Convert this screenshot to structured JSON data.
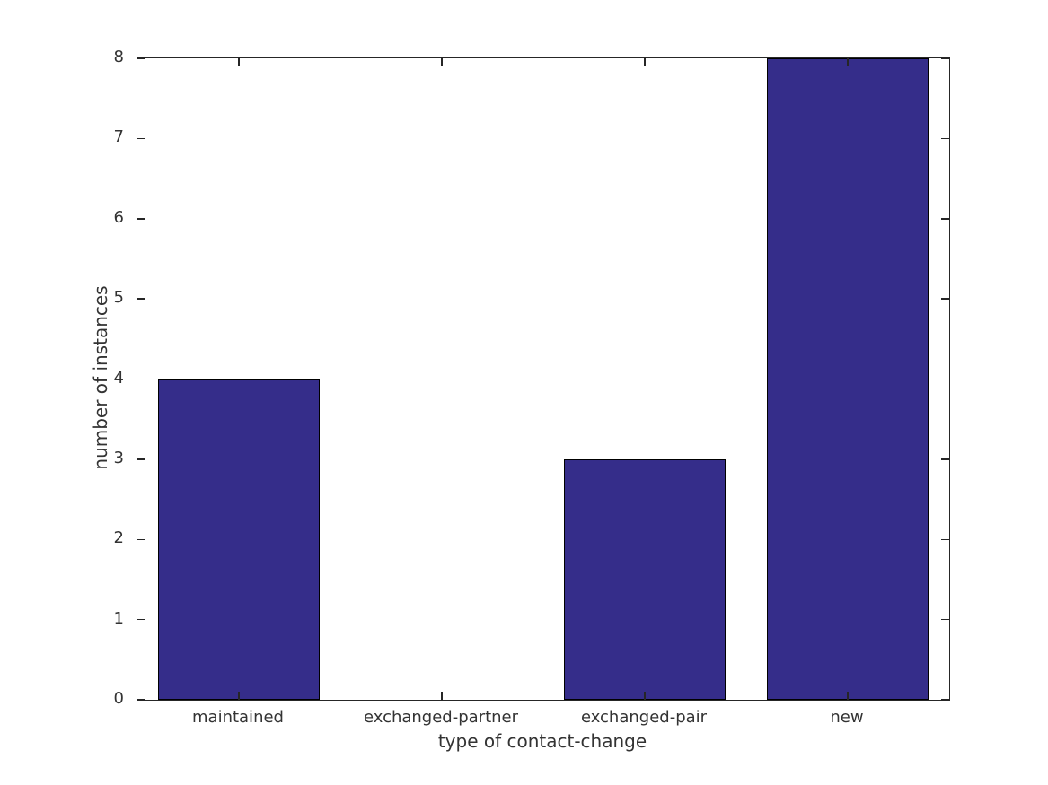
{
  "chart_data": {
    "type": "bar",
    "title": "",
    "xlabel": "type of contact-change",
    "ylabel": "number of instances",
    "categories": [
      "maintained",
      "exchanged-partner",
      "exchanged-pair",
      "new"
    ],
    "values": [
      4,
      0,
      3,
      8
    ],
    "ylim": [
      0,
      8
    ],
    "yticks": [
      0,
      1,
      2,
      3,
      4,
      5,
      6,
      7,
      8
    ],
    "grid": false,
    "legend": null,
    "bar_width_fraction": 0.8,
    "tick_direction": "in",
    "colors": {
      "bar_fill": "#352d8a",
      "bar_edge": "#000000",
      "axis": "#262626",
      "text": "#333333",
      "background": "#ffffff"
    }
  }
}
